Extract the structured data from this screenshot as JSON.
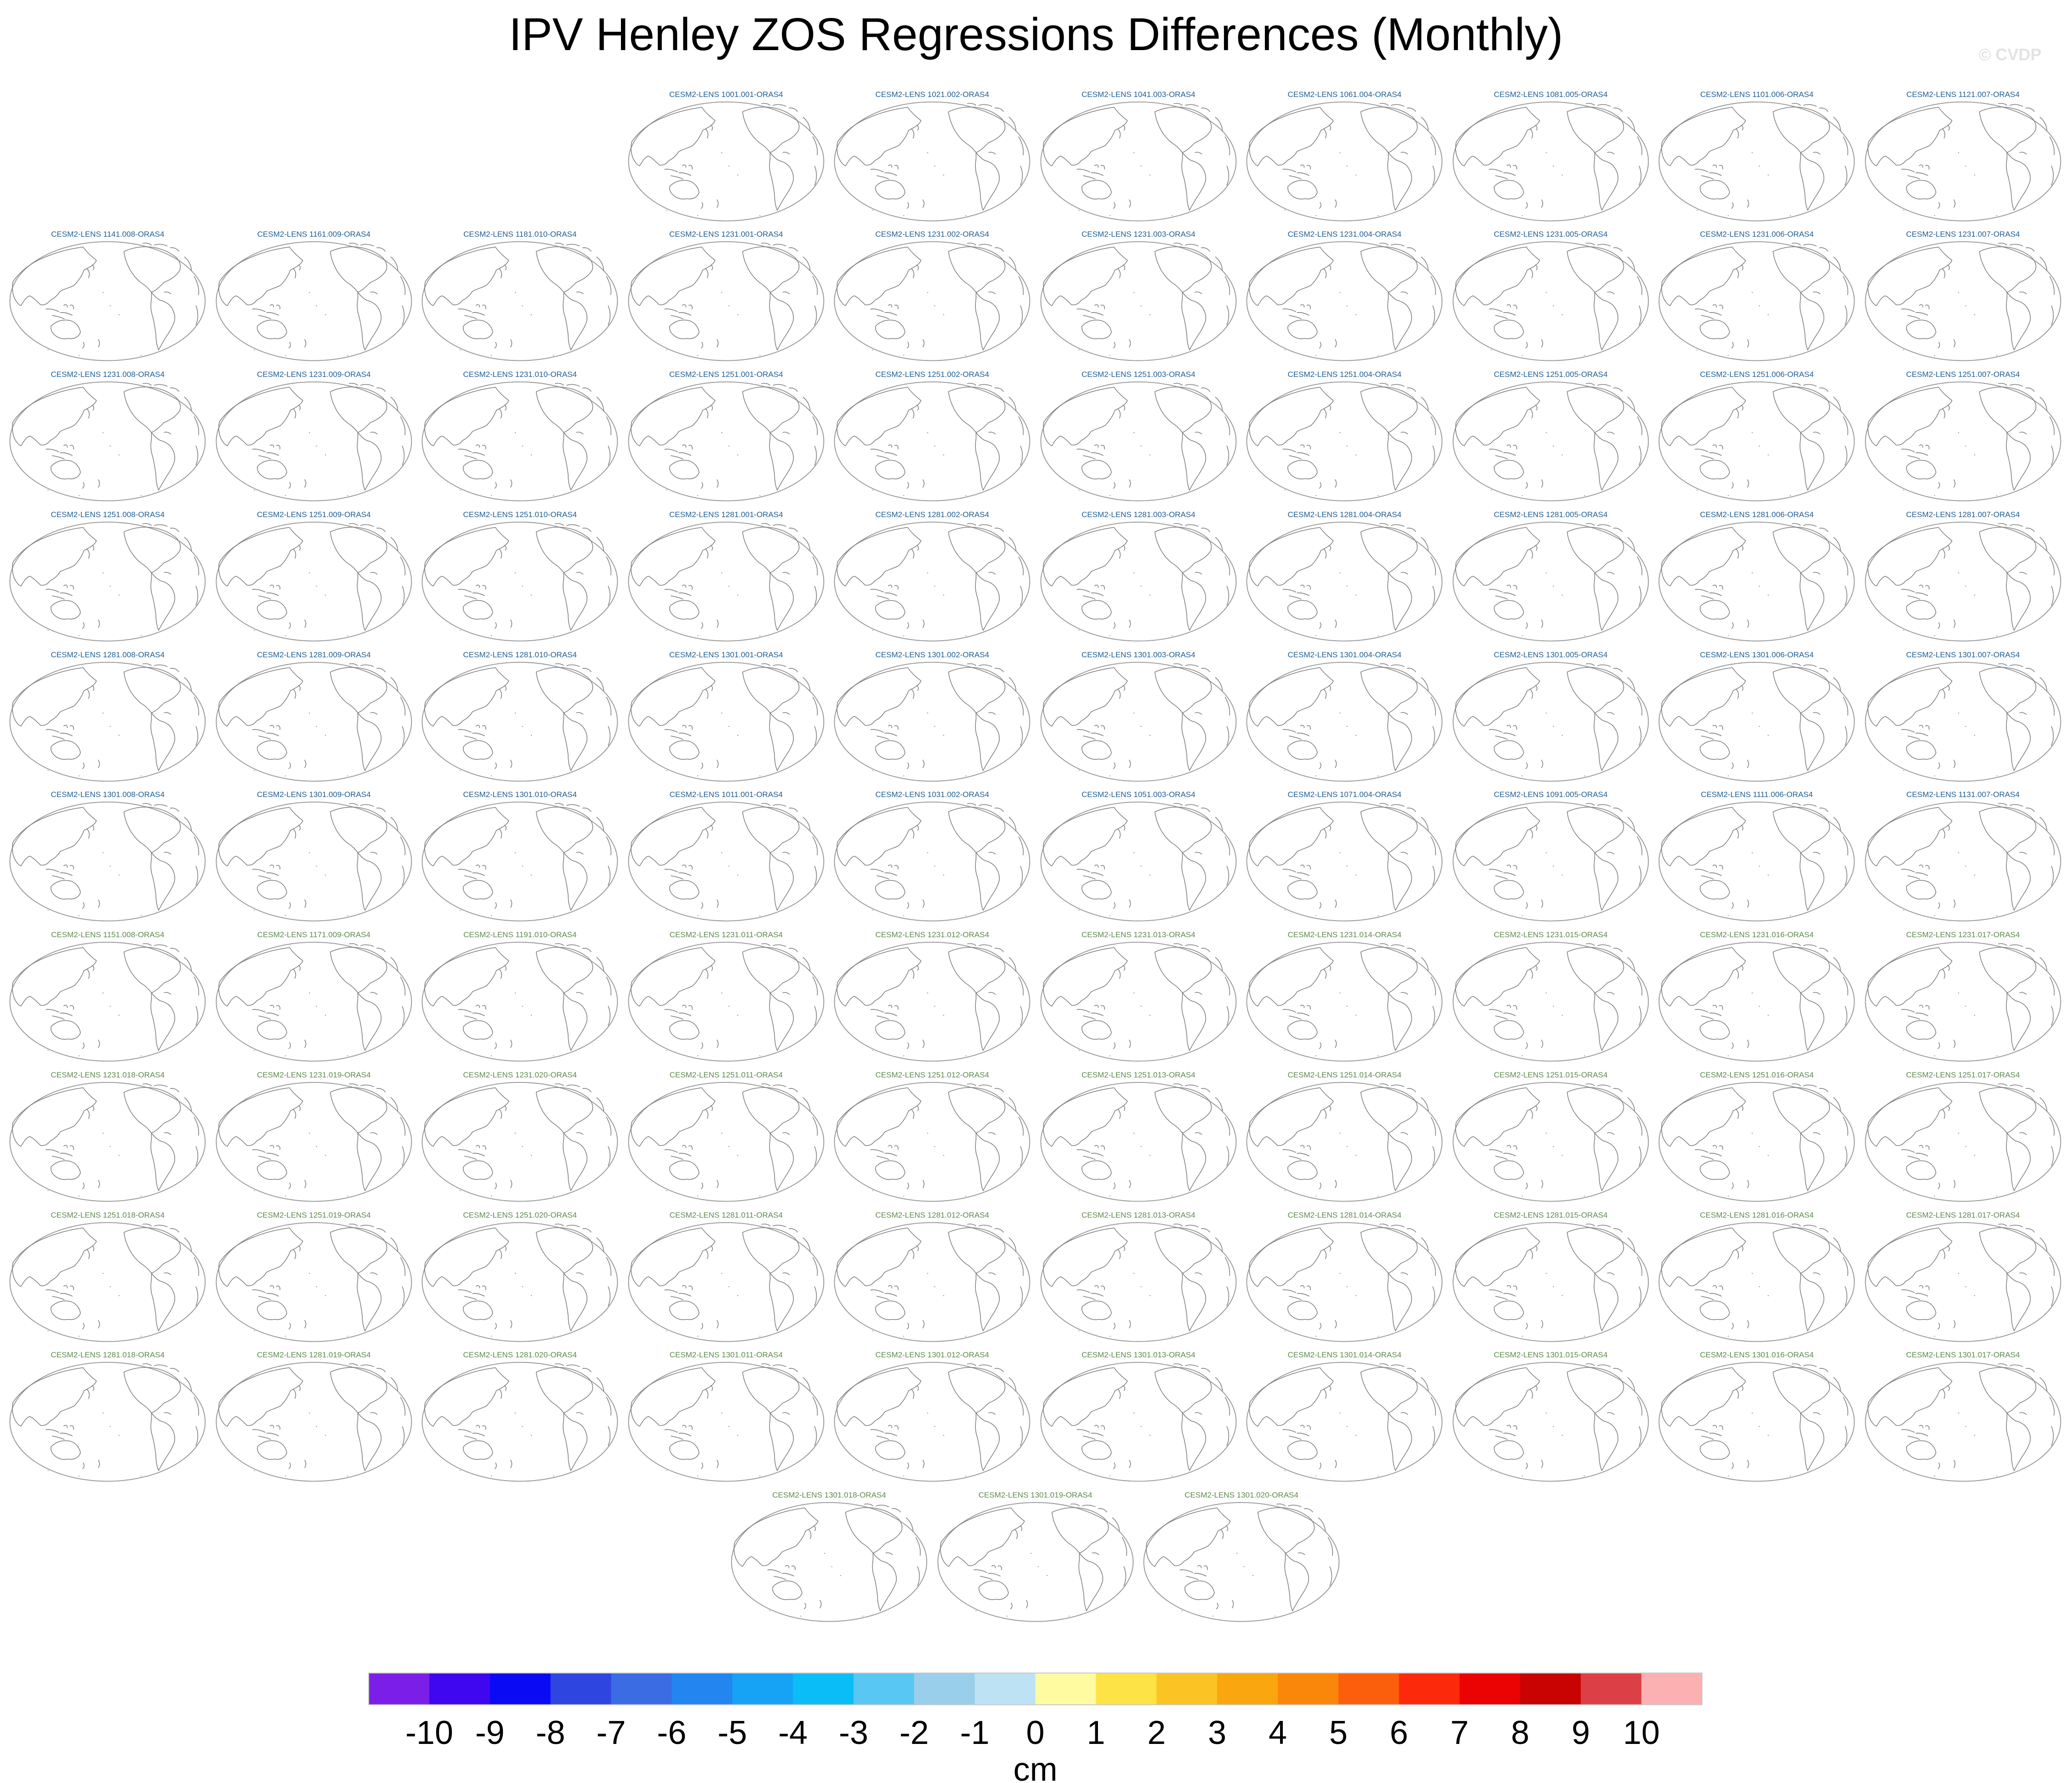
{
  "title": "IPV Henley ZOS Regressions Differences (Monthly)",
  "watermark": "© CVDP",
  "chart_data": {
    "type": "heatmap",
    "title": "IPV Henley ZOS Regressions Differences (Monthly)",
    "projection": "Robinson global map, Pacific-centred",
    "panel_rows": [
      [
        "CESM2-LENS 1001.001-ORAS4",
        "CESM2-LENS 1021.002-ORAS4",
        "CESM2-LENS 1041.003-ORAS4",
        "CESM2-LENS 1061.004-ORAS4",
        "CESM2-LENS 1081.005-ORAS4",
        "CESM2-LENS 1101.006-ORAS4",
        "CESM2-LENS 1121.007-ORAS4"
      ],
      [
        "CESM2-LENS 1141.008-ORAS4",
        "CESM2-LENS 1161.009-ORAS4",
        "CESM2-LENS 1181.010-ORAS4",
        "CESM2-LENS 1231.001-ORAS4",
        "CESM2-LENS 1231.002-ORAS4",
        "CESM2-LENS 1231.003-ORAS4",
        "CESM2-LENS 1231.004-ORAS4",
        "CESM2-LENS 1231.005-ORAS4",
        "CESM2-LENS 1231.006-ORAS4",
        "CESM2-LENS 1231.007-ORAS4"
      ],
      [
        "CESM2-LENS 1231.008-ORAS4",
        "CESM2-LENS 1231.009-ORAS4",
        "CESM2-LENS 1231.010-ORAS4",
        "CESM2-LENS 1251.001-ORAS4",
        "CESM2-LENS 1251.002-ORAS4",
        "CESM2-LENS 1251.003-ORAS4",
        "CESM2-LENS 1251.004-ORAS4",
        "CESM2-LENS 1251.005-ORAS4",
        "CESM2-LENS 1251.006-ORAS4",
        "CESM2-LENS 1251.007-ORAS4"
      ],
      [
        "CESM2-LENS 1251.008-ORAS4",
        "CESM2-LENS 1251.009-ORAS4",
        "CESM2-LENS 1251.010-ORAS4",
        "CESM2-LENS 1281.001-ORAS4",
        "CESM2-LENS 1281.002-ORAS4",
        "CESM2-LENS 1281.003-ORAS4",
        "CESM2-LENS 1281.004-ORAS4",
        "CESM2-LENS 1281.005-ORAS4",
        "CESM2-LENS 1281.006-ORAS4",
        "CESM2-LENS 1281.007-ORAS4"
      ],
      [
        "CESM2-LENS 1281.008-ORAS4",
        "CESM2-LENS 1281.009-ORAS4",
        "CESM2-LENS 1281.010-ORAS4",
        "CESM2-LENS 1301.001-ORAS4",
        "CESM2-LENS 1301.002-ORAS4",
        "CESM2-LENS 1301.003-ORAS4",
        "CESM2-LENS 1301.004-ORAS4",
        "CESM2-LENS 1301.005-ORAS4",
        "CESM2-LENS 1301.006-ORAS4",
        "CESM2-LENS 1301.007-ORAS4"
      ],
      [
        "CESM2-LENS 1301.008-ORAS4",
        "CESM2-LENS 1301.009-ORAS4",
        "CESM2-LENS 1301.010-ORAS4",
        "CESM2-LENS 1011.001-ORAS4",
        "CESM2-LENS 1031.002-ORAS4",
        "CESM2-LENS 1051.003-ORAS4",
        "CESM2-LENS 1071.004-ORAS4",
        "CESM2-LENS 1091.005-ORAS4",
        "CESM2-LENS 1111.006-ORAS4",
        "CESM2-LENS 1131.007-ORAS4"
      ],
      [
        "CESM2-LENS 1151.008-ORAS4",
        "CESM2-LENS 1171.009-ORAS4",
        "CESM2-LENS 1191.010-ORAS4",
        "CESM2-LENS 1231.011-ORAS4",
        "CESM2-LENS 1231.012-ORAS4",
        "CESM2-LENS 1231.013-ORAS4",
        "CESM2-LENS 1231.014-ORAS4",
        "CESM2-LENS 1231.015-ORAS4",
        "CESM2-LENS 1231.016-ORAS4",
        "CESM2-LENS 1231.017-ORAS4"
      ],
      [
        "CESM2-LENS 1231.018-ORAS4",
        "CESM2-LENS 1231.019-ORAS4",
        "CESM2-LENS 1231.020-ORAS4",
        "CESM2-LENS 1251.011-ORAS4",
        "CESM2-LENS 1251.012-ORAS4",
        "CESM2-LENS 1251.013-ORAS4",
        "CESM2-LENS 1251.014-ORAS4",
        "CESM2-LENS 1251.015-ORAS4",
        "CESM2-LENS 1251.016-ORAS4",
        "CESM2-LENS 1251.017-ORAS4"
      ],
      [
        "CESM2-LENS 1251.018-ORAS4",
        "CESM2-LENS 1251.019-ORAS4",
        "CESM2-LENS 1251.020-ORAS4",
        "CESM2-LENS 1281.011-ORAS4",
        "CESM2-LENS 1281.012-ORAS4",
        "CESM2-LENS 1281.013-ORAS4",
        "CESM2-LENS 1281.014-ORAS4",
        "CESM2-LENS 1281.015-ORAS4",
        "CESM2-LENS 1281.016-ORAS4",
        "CESM2-LENS 1281.017-ORAS4"
      ],
      [
        "CESM2-LENS 1281.018-ORAS4",
        "CESM2-LENS 1281.019-ORAS4",
        "CESM2-LENS 1281.020-ORAS4",
        "CESM2-LENS 1301.011-ORAS4",
        "CESM2-LENS 1301.012-ORAS4",
        "CESM2-LENS 1301.013-ORAS4",
        "CESM2-LENS 1301.014-ORAS4",
        "CESM2-LENS 1301.015-ORAS4",
        "CESM2-LENS 1301.016-ORAS4",
        "CESM2-LENS 1301.017-ORAS4"
      ],
      [
        "CESM2-LENS 1301.018-ORAS4",
        "CESM2-LENS 1301.019-ORAS4",
        "CESM2-LENS 1301.020-ORAS4"
      ]
    ],
    "panel_title_colors": {
      "first_group": "#1f5e93",
      "second_group": "#5e8a4e",
      "first_group_count": 57
    },
    "panel_values": "no shaded regression-difference values visible; every panel shows only coastlines",
    "colorbar": {
      "label": "cm",
      "ticks": [
        "-10",
        "-9",
        "-8",
        "-7",
        "-6",
        "-5",
        "-4",
        "-3",
        "-2",
        "-1",
        "0",
        "1",
        "2",
        "3",
        "4",
        "5",
        "6",
        "7",
        "8",
        "9",
        "10"
      ],
      "colors": [
        "#7b1fe8",
        "#3f07f0",
        "#0b0af5",
        "#2e45e0",
        "#3b6ce3",
        "#2285f0",
        "#17a3f5",
        "#0bbdf7",
        "#58c7f2",
        "#99cfea",
        "#bde2f4",
        "#fefba0",
        "#fde345",
        "#fbc425",
        "#faa60e",
        "#fb870a",
        "#fb5f0b",
        "#fc2a0b",
        "#eb0202",
        "#c90202",
        "#dc4046",
        "#fbb1b1"
      ]
    }
  }
}
